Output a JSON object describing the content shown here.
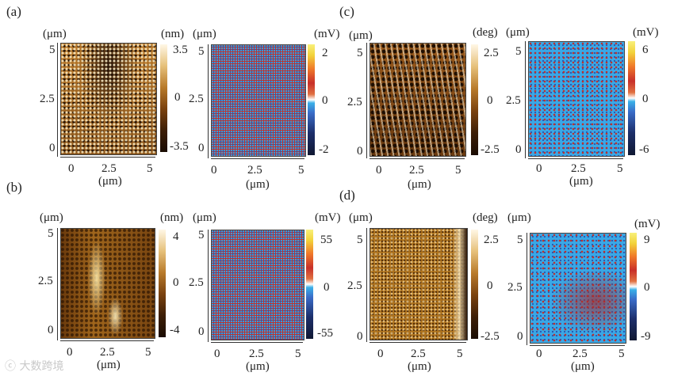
{
  "panels": {
    "a": {
      "label": "(a)",
      "topo": {
        "unit_top": "(μm)",
        "cbar_unit": "(nm)",
        "cbar_ticks": [
          "3.5",
          "0",
          "-3.5"
        ],
        "y_ticks": [
          "5",
          "2.5",
          "0"
        ],
        "x_ticks": [
          "0",
          "2.5",
          "5"
        ],
        "x_unit": "(μm)"
      },
      "kpfm": {
        "unit_top": "(μm)",
        "cbar_unit": "(mV)",
        "cbar_ticks": [
          "2",
          "0",
          "-2"
        ],
        "y_ticks": [
          "5",
          "2.5",
          "0"
        ],
        "x_ticks": [
          "0",
          "2.5",
          "5"
        ],
        "x_unit": "(μm)"
      }
    },
    "b": {
      "label": "(b)",
      "topo": {
        "unit_top": "(μm)",
        "cbar_unit": "(nm)",
        "cbar_ticks": [
          "4",
          "0",
          "-4"
        ],
        "y_ticks": [
          "5",
          "2.5",
          "0"
        ],
        "x_ticks": [
          "0",
          "2.5",
          "5"
        ],
        "x_unit": "(μm)"
      },
      "kpfm": {
        "unit_top": "(μm)",
        "cbar_unit": "(mV)",
        "cbar_ticks": [
          "55",
          "0",
          "-55"
        ],
        "y_ticks": [
          "5",
          "2.5",
          "0"
        ],
        "x_ticks": [
          "0",
          "2.5",
          "5"
        ],
        "x_unit": "(μm)"
      }
    },
    "c": {
      "label": "(c)",
      "topo": {
        "unit_top": "(μm)",
        "cbar_unit": "(deg)",
        "cbar_ticks": [
          "2.5",
          "0",
          "-2.5"
        ],
        "y_ticks": [
          "5",
          "2.5",
          "0"
        ],
        "x_ticks": [
          "0",
          "2.5",
          "5"
        ],
        "x_unit": "(μm)"
      },
      "kpfm": {
        "unit_top": "(μm)",
        "cbar_unit": "(mV)",
        "cbar_ticks": [
          "6",
          "0",
          "-6"
        ],
        "y_ticks": [
          "5",
          "2.5",
          "0"
        ],
        "x_ticks": [
          "0",
          "2.5",
          "5"
        ],
        "x_unit": "(μm)"
      }
    },
    "d": {
      "label": "(d)",
      "topo": {
        "unit_top": "(μm)",
        "cbar_unit": "(deg)",
        "cbar_ticks": [
          "2.5",
          "0",
          "-2.5"
        ],
        "y_ticks": [
          "5",
          "2.5",
          "0"
        ],
        "x_ticks": [
          "0",
          "2.5",
          "5"
        ],
        "x_unit": "(μm)"
      },
      "kpfm": {
        "unit_top": "(μm)",
        "cbar_unit": "(mV)",
        "cbar_ticks": [
          "9",
          "0",
          "-9"
        ],
        "y_ticks": [
          "5",
          "2.5",
          "0"
        ],
        "x_ticks": [
          "0",
          "2.5",
          "5"
        ],
        "x_unit": "(μm)"
      }
    }
  },
  "watermark": "大数跨境"
}
